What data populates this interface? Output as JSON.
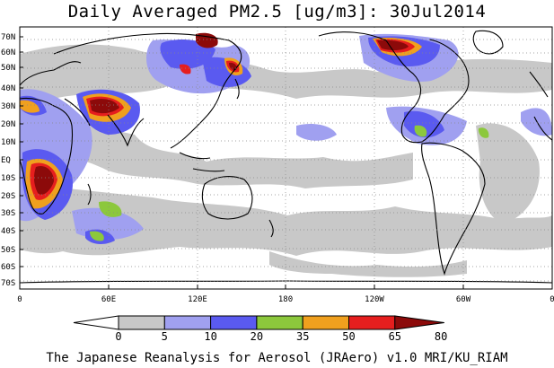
{
  "title": "Daily Averaged PM2.5 [ug/m3]: 30Jul2014",
  "footer": "The Japanese Reanalysis for Aerosol (JRAero) v1.0 MRI/KU_RIAM",
  "lat_labels": [
    "70N",
    "60N",
    "50N",
    "40N",
    "30N",
    "20N",
    "10N",
    "EQ",
    "10S",
    "20S",
    "30S",
    "40S",
    "50S",
    "60S",
    "70S"
  ],
  "lon_labels": [
    "0",
    "60E",
    "120E",
    "180",
    "120W",
    "60W",
    "0"
  ],
  "colorbar": {
    "ticks": [
      "0",
      "5",
      "10",
      "20",
      "35",
      "50",
      "65",
      "80"
    ],
    "colors": [
      "#ffffff",
      "#c8c8c8",
      "#a0a0f0",
      "#5a5af0",
      "#8cc83c",
      "#f0a01e",
      "#e61e1e",
      "#8c0a0a"
    ]
  }
}
